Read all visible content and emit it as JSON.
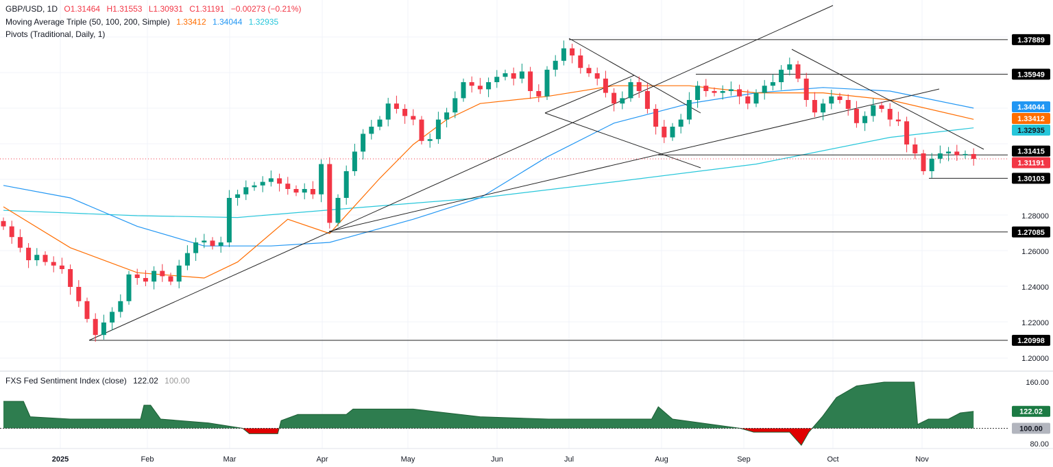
{
  "header": {
    "symbol": "GBP/USD, 1D",
    "open": "O1.31464",
    "high": "H1.31553",
    "low": "L1.30931",
    "close": "C1.31191",
    "change": "−0.00273 (−0.21%)",
    "ma_label": "Moving Average Triple (50, 100, 200, Simple)",
    "ma50": "1.33412",
    "ma100": "1.34044",
    "ma200": "1.32935",
    "pivots_label": "Pivots (Traditional, Daily, 1)"
  },
  "sub": {
    "label": "FXS Fed Sentiment Index (close)",
    "value": "122.02",
    "base": "100.00"
  },
  "colors": {
    "up": "#089981",
    "down": "#f23645",
    "ma50": "#ff6d00",
    "ma100": "#2196f3",
    "ma200": "#26c6da",
    "area_up": "#2e7d4f",
    "area_down": "#e00000"
  },
  "chart_data": [
    {
      "type": "candlestick",
      "title": "GBP/USD, 1D",
      "x_ticks": [
        "2025",
        "Feb",
        "Mar",
        "Apr",
        "May",
        "Jun",
        "Jul",
        "Aug",
        "Sep",
        "Oct",
        "Nov"
      ],
      "y_ticks": [
        "1.20000",
        "1.22000",
        "1.24000",
        "1.26000",
        "1.28000"
      ],
      "ylim": [
        1.195,
        1.395
      ],
      "price_labels": [
        {
          "text": "1.37889",
          "value": 1.37889,
          "color": "#000000"
        },
        {
          "text": "1.35949",
          "value": 1.35949,
          "color": "#000000"
        },
        {
          "text": "1.34044",
          "value": 1.34044,
          "color": "#2196f3"
        },
        {
          "text": "1.33412",
          "value": 1.33412,
          "color": "#ff6d00"
        },
        {
          "text": "1.32935",
          "value": 1.32935,
          "color": "#26c6da"
        },
        {
          "text": "1.31415",
          "value": 1.31415,
          "color": "#000000"
        },
        {
          "text": "1.31191",
          "value": 1.31191,
          "color": "#f23645"
        },
        {
          "text": "1.30103",
          "value": 1.30103,
          "color": "#000000"
        },
        {
          "text": "1.27085",
          "value": 1.27085,
          "color": "#000000"
        },
        {
          "text": "1.20998",
          "value": 1.20998,
          "color": "#000000"
        }
      ],
      "closes": [
        1.274,
        1.268,
        1.262,
        1.255,
        1.258,
        1.254,
        1.252,
        1.25,
        1.24,
        1.232,
        1.222,
        1.213,
        1.22,
        1.226,
        1.232,
        1.247,
        1.245,
        1.243,
        1.249,
        1.246,
        1.243,
        1.252,
        1.259,
        1.265,
        1.266,
        1.263,
        1.265,
        1.29,
        1.292,
        1.296,
        1.297,
        1.299,
        1.301,
        1.298,
        1.295,
        1.293,
        1.295,
        1.292,
        1.309,
        1.276,
        1.29,
        1.305,
        1.316,
        1.326,
        1.33,
        1.334,
        1.343,
        1.34,
        1.336,
        1.334,
        1.322,
        1.323,
        1.334,
        1.338,
        1.346,
        1.355,
        1.353,
        1.351,
        1.355,
        1.358,
        1.36,
        1.357,
        1.361,
        1.35,
        1.347,
        1.362,
        1.367,
        1.374,
        1.37,
        1.363,
        1.36,
        1.357,
        1.349,
        1.343,
        1.346,
        1.355,
        1.35,
        1.34,
        1.33,
        1.324,
        1.33,
        1.334,
        1.345,
        1.353,
        1.35,
        1.349,
        1.35,
        1.351,
        1.347,
        1.343,
        1.349,
        1.353,
        1.355,
        1.362,
        1.365,
        1.357,
        1.345,
        1.338,
        1.343,
        1.347,
        1.345,
        1.34,
        1.332,
        1.336,
        1.342,
        1.34,
        1.334,
        1.333,
        1.32,
        1.315,
        1.305,
        1.312,
        1.315,
        1.316,
        1.314,
        1.31464,
        1.31191
      ],
      "ma50": [
        [
          0,
          1.285
        ],
        [
          8,
          1.262
        ],
        [
          16,
          1.248
        ],
        [
          24,
          1.245
        ],
        [
          28,
          1.254
        ],
        [
          34,
          1.278
        ],
        [
          39,
          1.27
        ],
        [
          45,
          1.301
        ],
        [
          49,
          1.32
        ],
        [
          53,
          1.334
        ],
        [
          57,
          1.343
        ],
        [
          65,
          1.347
        ],
        [
          73,
          1.353
        ],
        [
          82,
          1.353
        ],
        [
          90,
          1.349
        ],
        [
          98,
          1.349
        ],
        [
          106,
          1.345
        ],
        [
          116,
          1.33412
        ]
      ],
      "ma100": [
        [
          0,
          1.297
        ],
        [
          8,
          1.29
        ],
        [
          16,
          1.274
        ],
        [
          24,
          1.263
        ],
        [
          32,
          1.263
        ],
        [
          39,
          1.265
        ],
        [
          49,
          1.278
        ],
        [
          57,
          1.29
        ],
        [
          65,
          1.313
        ],
        [
          73,
          1.332
        ],
        [
          82,
          1.343
        ],
        [
          90,
          1.349
        ],
        [
          98,
          1.352
        ],
        [
          106,
          1.35
        ],
        [
          116,
          1.34044
        ]
      ],
      "ma200": [
        [
          0,
          1.283
        ],
        [
          16,
          1.28
        ],
        [
          28,
          1.279
        ],
        [
          41,
          1.284
        ],
        [
          57,
          1.29
        ],
        [
          73,
          1.299
        ],
        [
          90,
          1.309
        ],
        [
          106,
          1.324
        ],
        [
          116,
          1.32935
        ]
      ]
    },
    {
      "type": "area",
      "title": "FXS Fed Sentiment Index (close)",
      "y_ticks": [
        "160.00",
        "80.00"
      ],
      "baseline": 100,
      "ylim": [
        75,
        165
      ],
      "values": [
        [
          0,
          135
        ],
        [
          2.4,
          135
        ],
        [
          3.2,
          115
        ],
        [
          8,
          112
        ],
        [
          16.4,
          112
        ],
        [
          16.8,
          130
        ],
        [
          17.6,
          130
        ],
        [
          18.8,
          112
        ],
        [
          24.5,
          107
        ],
        [
          28.6,
          100
        ],
        [
          29.4,
          93
        ],
        [
          32.8,
          93
        ],
        [
          33.2,
          110
        ],
        [
          35.2,
          118
        ],
        [
          41,
          118
        ],
        [
          41.8,
          125
        ],
        [
          49,
          125
        ],
        [
          57,
          115
        ],
        [
          65.2,
          112
        ],
        [
          77.5,
          112
        ],
        [
          78.3,
          128
        ],
        [
          80,
          112
        ],
        [
          88.1,
          100
        ],
        [
          89.7,
          95
        ],
        [
          94,
          95
        ],
        [
          95.4,
          78
        ],
        [
          96.3,
          95
        ],
        [
          97.9,
          115
        ],
        [
          99.6,
          140
        ],
        [
          102,
          155
        ],
        [
          105.3,
          160
        ],
        [
          108.9,
          160
        ],
        [
          109.3,
          105
        ],
        [
          110.6,
          112
        ],
        [
          113,
          112
        ],
        [
          114.4,
          120
        ],
        [
          116,
          122.02
        ]
      ]
    }
  ]
}
